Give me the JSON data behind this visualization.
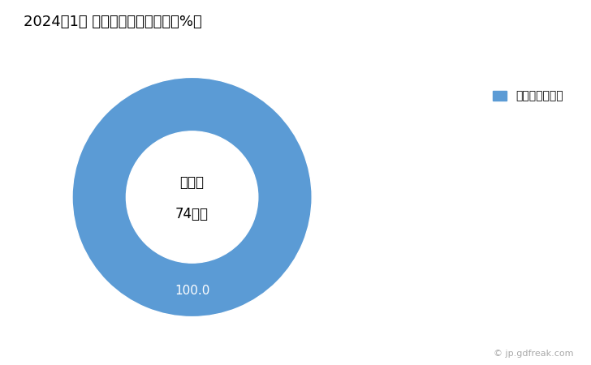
{
  "title": "2024年1月 輸出相手国のシェア（%）",
  "title_fontsize": 13,
  "slices": [
    100.0
  ],
  "labels": [
    "サウジアラビア"
  ],
  "colors": [
    "#5B9BD5"
  ],
  "center_label_line1": "総　額",
  "center_label_line2": "74万円",
  "slice_label": "100.0",
  "legend_marker_color": "#5B9BD5",
  "background_color": "#ffffff",
  "watermark": "© jp.gdfreak.com"
}
